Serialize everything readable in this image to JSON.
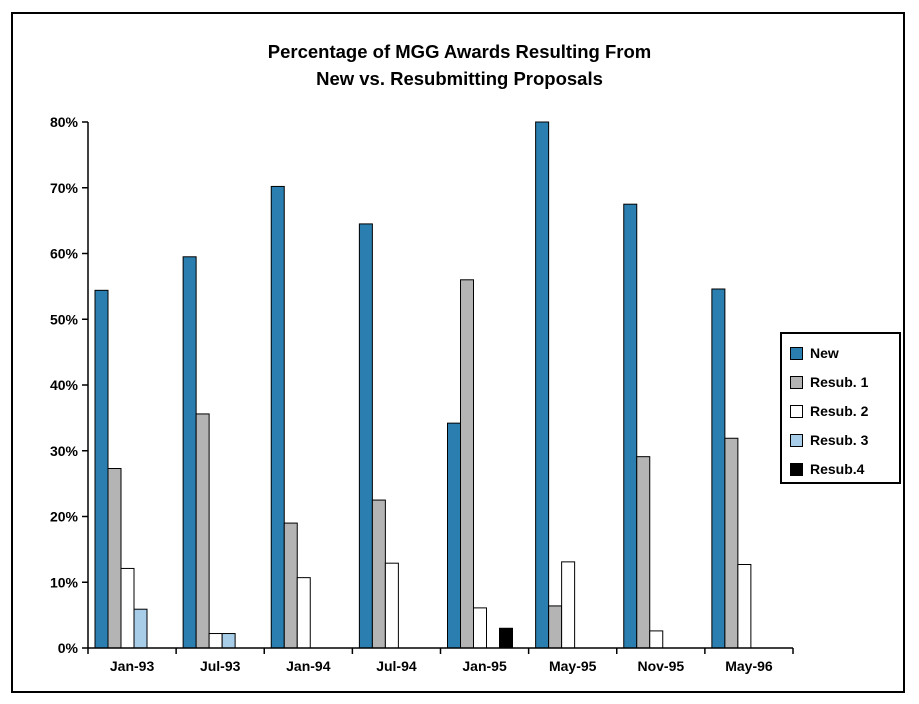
{
  "chart_data": {
    "type": "bar",
    "title": "Percentage of MGG Awards Resulting From",
    "subtitle": "New vs. Resubmitting Proposals",
    "xlabel": "",
    "ylabel": "",
    "ylim": [
      0,
      80
    ],
    "y_ticks": [
      "0%",
      "10%",
      "20%",
      "30%",
      "40%",
      "50%",
      "60%",
      "70%",
      "80%"
    ],
    "grid": false,
    "legend_position": "right",
    "categories": [
      "Jan-93",
      "Jul-93",
      "Jan-94",
      "Jul-94",
      "Jan-95",
      "May-95",
      "Nov-95",
      "May-96"
    ],
    "series": [
      {
        "name": "New",
        "color": "#2a7fb0",
        "values": [
          54.4,
          59.5,
          70.2,
          64.5,
          34.2,
          80.0,
          67.5,
          54.6
        ]
      },
      {
        "name": "Resub. 1",
        "color": "#b4b4b4",
        "values": [
          27.3,
          35.6,
          19.0,
          22.5,
          56.0,
          6.4,
          29.1,
          31.9
        ]
      },
      {
        "name": "Resub. 2",
        "color": "#ffffff",
        "values": [
          12.1,
          2.2,
          10.7,
          12.9,
          6.1,
          13.1,
          2.6,
          12.7
        ]
      },
      {
        "name": "Resub. 3",
        "color": "#a8cde8",
        "values": [
          5.9,
          2.2,
          0,
          0,
          0,
          0,
          0,
          0
        ]
      },
      {
        "name": "Resub.4",
        "color": "#000000",
        "values": [
          0,
          0,
          0,
          0,
          3.0,
          0,
          0,
          0
        ]
      }
    ]
  }
}
